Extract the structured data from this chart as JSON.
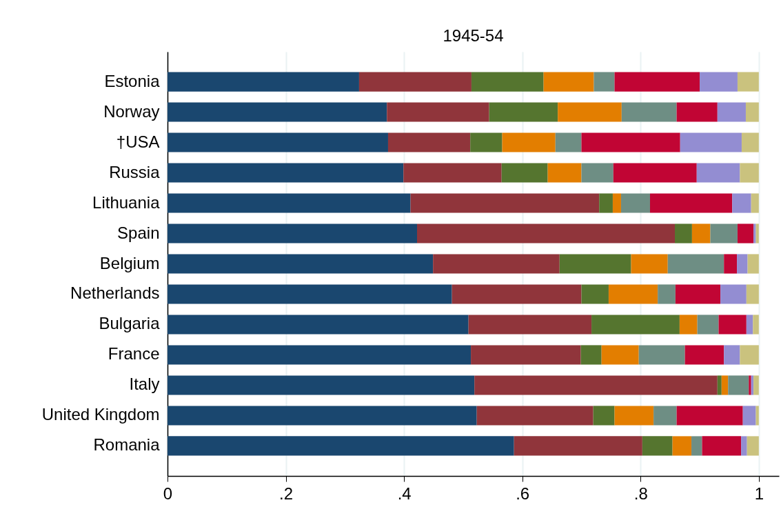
{
  "chart_data": {
    "type": "bar",
    "orientation": "horizontal",
    "stacked": true,
    "title": "1945-54",
    "categories": [
      "Estonia",
      "Norway",
      "†USA",
      "Russia",
      "Lithuania",
      "Spain",
      "Belgium",
      "Netherlands",
      "Bulgaria",
      "France",
      "Italy",
      "United Kingdom",
      "Romania"
    ],
    "series": [
      {
        "color": "#1a476f",
        "values": [
          0.324,
          0.371,
          0.373,
          0.399,
          0.411,
          0.422,
          0.449,
          0.481,
          0.509,
          0.513,
          0.519,
          0.523,
          0.586
        ]
      },
      {
        "color": "#90353b",
        "values": [
          0.19,
          0.173,
          0.139,
          0.166,
          0.319,
          0.436,
          0.214,
          0.219,
          0.208,
          0.186,
          0.411,
          0.197,
          0.217
        ]
      },
      {
        "color": "#55752f",
        "values": [
          0.122,
          0.116,
          0.054,
          0.078,
          0.023,
          0.029,
          0.121,
          0.046,
          0.149,
          0.035,
          0.007,
          0.036,
          0.051
        ]
      },
      {
        "color": "#e37e00",
        "values": [
          0.085,
          0.108,
          0.09,
          0.057,
          0.014,
          0.031,
          0.062,
          0.083,
          0.03,
          0.063,
          0.011,
          0.066,
          0.032
        ]
      },
      {
        "color": "#6e8e84",
        "values": [
          0.035,
          0.093,
          0.044,
          0.054,
          0.049,
          0.046,
          0.095,
          0.03,
          0.036,
          0.078,
          0.035,
          0.039,
          0.018
        ]
      },
      {
        "color": "#c10534",
        "values": [
          0.144,
          0.069,
          0.167,
          0.141,
          0.139,
          0.027,
          0.022,
          0.076,
          0.047,
          0.066,
          0.004,
          0.112,
          0.066
        ]
      },
      {
        "color": "#938dd2",
        "values": [
          0.064,
          0.048,
          0.104,
          0.073,
          0.032,
          0.004,
          0.018,
          0.044,
          0.011,
          0.027,
          0.004,
          0.022,
          0.01
        ]
      },
      {
        "color": "#cac27e",
        "values": [
          0.036,
          0.022,
          0.029,
          0.032,
          0.013,
          0.005,
          0.019,
          0.021,
          0.01,
          0.032,
          0.009,
          0.005,
          0.02
        ]
      }
    ],
    "xlim": [
      0,
      1.034
    ],
    "xticks": [
      0,
      {
        "value": 0.2,
        "label": ".2"
      },
      {
        "value": 0.4,
        "label": ".4"
      },
      {
        "value": 0.6,
        "label": ".6"
      },
      {
        "value": 0.8,
        "label": ".8"
      },
      1
    ],
    "grid": "x"
  }
}
